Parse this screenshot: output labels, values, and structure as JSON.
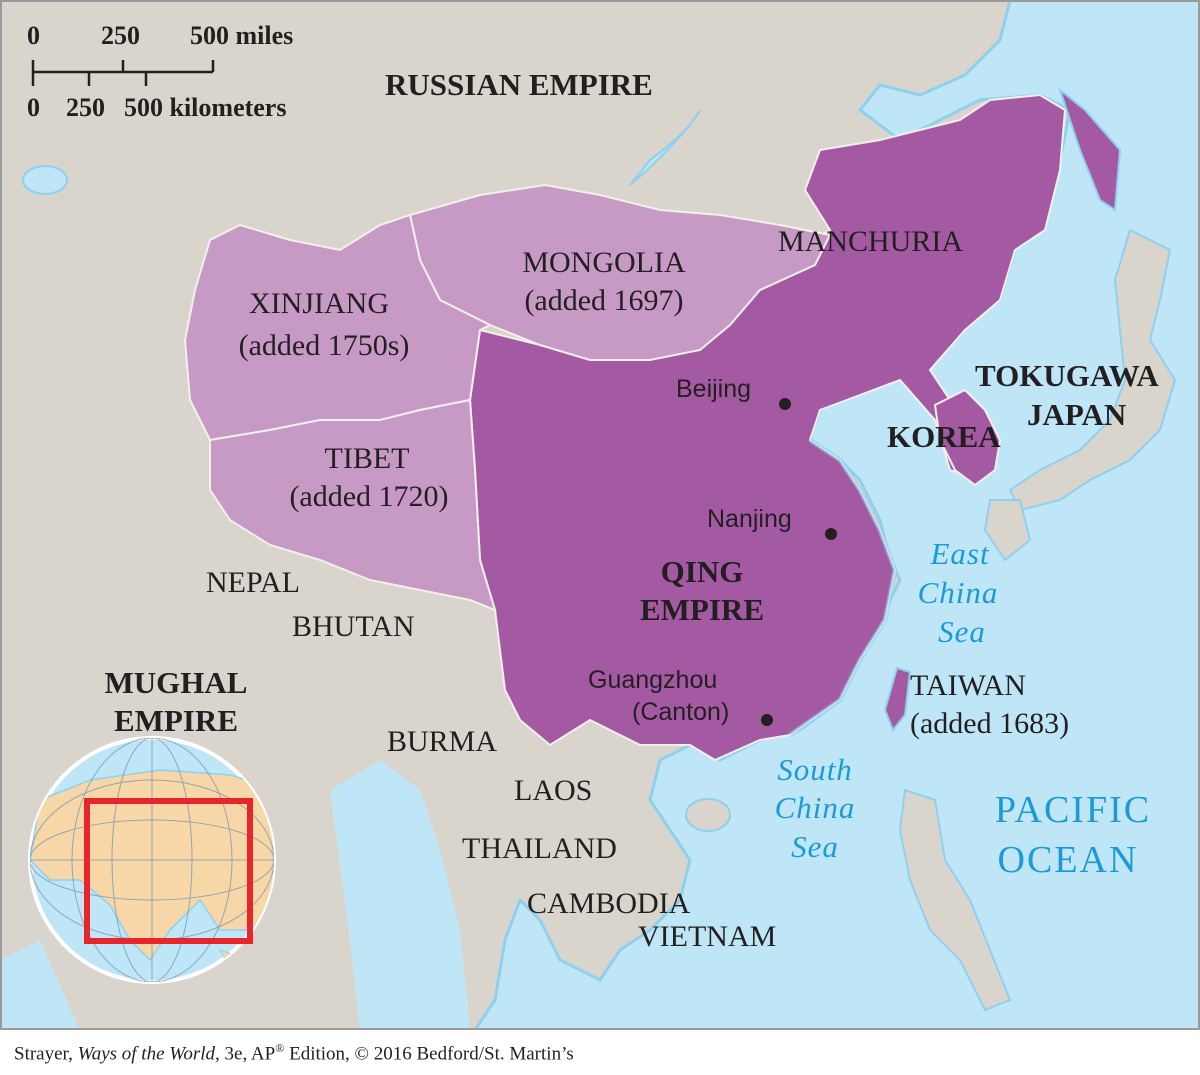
{
  "colors": {
    "ocean": "#bfe6f7",
    "land": "#d9d5cc",
    "qing_core": "#a45aa3",
    "qing_added": "#c79ac6",
    "border": "#f2f0ec",
    "water_text": "#1a9ad6",
    "inset_box": "#e8262a"
  },
  "scale_bar": {
    "miles": [
      "0",
      "250",
      "500 miles"
    ],
    "kilometers": [
      "0",
      "250",
      "500 kilometers"
    ]
  },
  "regions": {
    "russian_empire": "RUSSIAN EMPIRE",
    "manchuria": "MANCHURIA",
    "mongolia": [
      "MONGOLIA",
      "(added 1697)"
    ],
    "xinjiang": [
      "XINJIANG",
      "(added 1750s)"
    ],
    "tibet": [
      "TIBET",
      "(added 1720)"
    ],
    "taiwan": [
      "TAIWAN",
      "(added 1683)"
    ],
    "qing_empire": [
      "QING",
      "EMPIRE"
    ],
    "tokugawa_japan": [
      "TOKUGAWA",
      "JAPAN"
    ],
    "korea": "KOREA",
    "mughal_empire": [
      "MUGHAL",
      "EMPIRE"
    ],
    "nepal": "NEPAL",
    "bhutan": "BHUTAN",
    "burma": "BURMA",
    "laos": "LAOS",
    "thailand": "THAILAND",
    "cambodia": "CAMBODIA",
    "vietnam": "VIETNAM"
  },
  "cities": {
    "beijing": "Beijing",
    "nanjing": "Nanjing",
    "guangzhou": [
      "Guangzhou",
      "(Canton)"
    ]
  },
  "water": {
    "east_china_sea": [
      "East",
      "China",
      "Sea"
    ],
    "south_china_sea": [
      "South",
      "China",
      "Sea"
    ],
    "pacific_ocean": [
      "PACIFIC",
      "OCEAN"
    ]
  },
  "caption": {
    "author": "Strayer,",
    "title": "Ways of the World,",
    "edition": "3e, AP",
    "reg": "®",
    "rest": "Edition, © 2016 Bedford/St. Martin’s"
  }
}
